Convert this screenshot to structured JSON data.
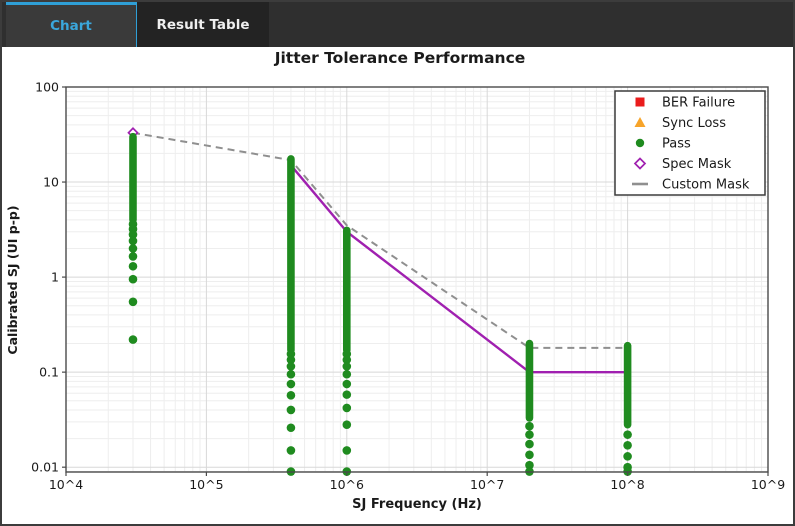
{
  "tabs": [
    {
      "id": "chart",
      "label": "Chart",
      "active": true
    },
    {
      "id": "result-table",
      "label": "Result Table",
      "active": false
    }
  ],
  "chart_data": {
    "type": "scatter",
    "title": "Jitter Tolerance Performance",
    "xlabel": "SJ Frequency (Hz)",
    "ylabel": "Calibrated SJ (UI p-p)",
    "x_scale": "log",
    "y_scale": "log",
    "x_range": [
      10000,
      1000000000
    ],
    "y_range": [
      0.0089,
      100
    ],
    "x_ticks": [
      {
        "value": 10000,
        "label": "10^4"
      },
      {
        "value": 100000,
        "label": "10^5"
      },
      {
        "value": 1000000,
        "label": "10^6"
      },
      {
        "value": 10000000,
        "label": "10^7"
      },
      {
        "value": 100000000,
        "label": "10^8"
      },
      {
        "value": 1000000000,
        "label": "10^9"
      }
    ],
    "y_ticks": [
      {
        "value": 100,
        "label": "100"
      },
      {
        "value": 10,
        "label": "10"
      },
      {
        "value": 1,
        "label": "1"
      },
      {
        "value": 0.1,
        "label": "0.1"
      },
      {
        "value": 0.01,
        "label": "0.01"
      }
    ],
    "grid": "major+minor",
    "legend_position": "top-right",
    "legend": [
      {
        "label": "BER Failure",
        "marker": "square",
        "color": "#EA1C1C"
      },
      {
        "label": "Sync Loss",
        "marker": "triangle",
        "color": "#F7A42A"
      },
      {
        "label": "Pass",
        "marker": "circle",
        "color": "#1F8B1F"
      },
      {
        "label": "Spec Mask",
        "marker": "open-diamond",
        "color": "#A020B0"
      },
      {
        "label": "Custom Mask",
        "marker": "dash",
        "color": "#8F8F8F"
      }
    ],
    "series": {
      "pass_runs": [
        {
          "freq": 30000,
          "dense_range": [
            30,
            4.0
          ],
          "tail_dots": [
            3.6,
            3.2,
            2.8,
            2.4,
            2.0,
            1.65,
            1.3,
            0.95,
            0.55,
            0.22
          ]
        },
        {
          "freq": 400000,
          "dense_range": [
            17.5,
            0.17
          ],
          "tail_dots": [
            0.155,
            0.135,
            0.115,
            0.095,
            0.075,
            0.057,
            0.04,
            0.026,
            0.015,
            0.009
          ]
        },
        {
          "freq": 1000000,
          "dense_range": [
            3.1,
            0.17
          ],
          "tail_dots": [
            0.155,
            0.135,
            0.115,
            0.095,
            0.075,
            0.058,
            0.042,
            0.028,
            0.015,
            0.009
          ]
        },
        {
          "freq": 20000000,
          "dense_range": [
            0.2,
            0.033
          ],
          "tail_dots": [
            0.027,
            0.022,
            0.0175,
            0.0135,
            0.0105,
            0.009
          ]
        },
        {
          "freq": 100000000,
          "dense_range": [
            0.19,
            0.028
          ],
          "tail_dots": [
            0.022,
            0.017,
            0.013,
            0.01,
            0.009
          ]
        }
      ],
      "ber_failure_points": [],
      "sync_loss_points": [],
      "spec_mask": {
        "points": [
          [
            30000,
            33
          ],
          [
            400000,
            15
          ],
          [
            1000000,
            3.0
          ],
          [
            20000000,
            0.1
          ],
          [
            100000000,
            0.1
          ]
        ],
        "line_starts_at_index": 1,
        "visible_marker_indices": [
          0
        ],
        "style": "solid"
      },
      "custom_mask": {
        "points": [
          [
            30000,
            33
          ],
          [
            400000,
            17
          ],
          [
            1000000,
            3.5
          ],
          [
            20000000,
            0.18
          ],
          [
            100000000,
            0.18
          ]
        ],
        "style": "dashed"
      }
    }
  },
  "colors": {
    "accent_blue": "#2F9FD6",
    "tabbar_bg": "#2F2F2F",
    "active_tab_bg": "#3A3A3A",
    "inactive_tab_bg": "#232323",
    "pass_green": "#1F8B1F",
    "spec_purple": "#A020B0",
    "custom_gray": "#8F8F8F",
    "ber_red": "#EA1C1C",
    "sync_orange": "#F7A42A",
    "grid_major": "#D8D8D8",
    "grid_minor": "#EEEEEE",
    "frame": "#4A4A4A",
    "text": "#1A1A1A"
  }
}
